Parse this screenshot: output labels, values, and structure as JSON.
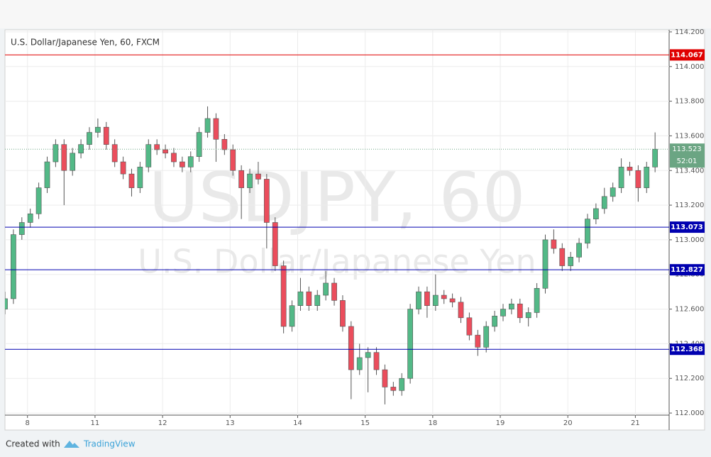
{
  "chart_data": {
    "type": "candlestick",
    "title": "U.S. Dollar/Japanese Yen, 60, FXCM",
    "watermark": {
      "symbol": "USDJPY, 60",
      "description": "U.S. Dollar/Japanese Yen"
    },
    "x": [
      0,
      3,
      6,
      9,
      12,
      15,
      18,
      21,
      24,
      27,
      30,
      33,
      36,
      39,
      42,
      45,
      48,
      51,
      54,
      57,
      60,
      63,
      66,
      69,
      72,
      75,
      78,
      81,
      84,
      87,
      90,
      93,
      96,
      99,
      102,
      105,
      108,
      111,
      114,
      117,
      120,
      123,
      126,
      129,
      132,
      135,
      138,
      141,
      144,
      147,
      150,
      153,
      156,
      159,
      162,
      165,
      168,
      171,
      174,
      177,
      180,
      183,
      186,
      189,
      192,
      195,
      198,
      201,
      204,
      207,
      210,
      213,
      216,
      219,
      222,
      225,
      228,
      231
    ],
    "open": [
      112.6,
      112.66,
      113.03,
      113.1,
      113.15,
      113.3,
      113.45,
      113.55,
      113.4,
      113.5,
      113.55,
      113.62,
      113.65,
      113.55,
      113.45,
      113.38,
      113.3,
      113.42,
      113.55,
      113.52,
      113.5,
      113.45,
      113.42,
      113.48,
      113.62,
      113.7,
      113.58,
      113.52,
      113.4,
      113.3,
      113.38,
      113.35,
      113.1,
      112.85,
      112.5,
      112.62,
      112.7,
      112.62,
      112.68,
      112.75,
      112.65,
      112.5,
      112.25,
      112.32,
      112.35,
      112.25,
      112.15,
      112.13,
      112.2,
      112.6,
      112.7,
      112.62,
      112.68,
      112.66,
      112.64,
      112.55,
      112.45,
      112.38,
      112.5,
      112.56,
      112.6,
      112.63,
      112.55,
      112.58,
      112.72,
      113.0,
      112.95,
      112.85,
      112.9,
      112.98,
      113.12,
      113.18,
      113.25,
      113.3,
      113.42,
      113.4,
      113.3,
      113.42
    ],
    "high": [
      112.7,
      113.06,
      113.13,
      113.18,
      113.33,
      113.48,
      113.58,
      113.58,
      113.53,
      113.58,
      113.65,
      113.7,
      113.68,
      113.58,
      113.48,
      113.41,
      113.45,
      113.58,
      113.58,
      113.55,
      113.53,
      113.48,
      113.51,
      113.65,
      113.77,
      113.73,
      113.61,
      113.55,
      113.43,
      113.41,
      113.45,
      113.38,
      113.13,
      112.88,
      112.65,
      112.78,
      112.73,
      112.71,
      112.82,
      112.78,
      112.68,
      112.53,
      112.4,
      112.38,
      112.38,
      112.28,
      112.18,
      112.23,
      112.63,
      112.73,
      112.73,
      112.8,
      112.71,
      112.69,
      112.67,
      112.58,
      112.48,
      112.53,
      112.59,
      112.63,
      112.66,
      112.66,
      112.61,
      112.75,
      113.03,
      113.06,
      112.98,
      112.93,
      113.01,
      113.15,
      113.21,
      113.3,
      113.33,
      113.47,
      113.45,
      113.43,
      113.45,
      113.62
    ],
    "low": [
      112.57,
      112.63,
      113.0,
      113.07,
      113.12,
      113.27,
      113.42,
      113.2,
      113.37,
      113.47,
      113.52,
      113.59,
      113.52,
      113.42,
      113.35,
      113.25,
      113.27,
      113.39,
      113.49,
      113.47,
      113.42,
      113.39,
      113.39,
      113.45,
      113.59,
      113.45,
      113.49,
      113.37,
      113.12,
      113.27,
      113.32,
      112.95,
      112.82,
      112.46,
      112.47,
      112.59,
      112.59,
      112.59,
      112.65,
      112.62,
      112.47,
      112.08,
      112.22,
      112.12,
      112.22,
      112.05,
      112.1,
      112.1,
      112.17,
      112.57,
      112.55,
      112.59,
      112.63,
      112.61,
      112.52,
      112.42,
      112.33,
      112.35,
      112.47,
      112.53,
      112.57,
      112.52,
      112.5,
      112.55,
      112.69,
      112.92,
      112.82,
      112.82,
      112.87,
      112.95,
      113.09,
      113.15,
      113.22,
      113.27,
      113.37,
      113.22,
      113.27,
      113.39
    ],
    "close": [
      112.66,
      113.03,
      113.1,
      113.15,
      113.3,
      113.45,
      113.55,
      113.4,
      113.5,
      113.55,
      113.62,
      113.65,
      113.55,
      113.45,
      113.38,
      113.3,
      113.42,
      113.55,
      113.52,
      113.5,
      113.45,
      113.42,
      113.48,
      113.62,
      113.7,
      113.58,
      113.52,
      113.4,
      113.3,
      113.38,
      113.35,
      113.1,
      112.85,
      112.5,
      112.62,
      112.7,
      112.62,
      112.68,
      112.75,
      112.65,
      112.5,
      112.25,
      112.32,
      112.35,
      112.25,
      112.15,
      112.13,
      112.2,
      112.6,
      112.7,
      112.62,
      112.68,
      112.66,
      112.64,
      112.55,
      112.45,
      112.38,
      112.5,
      112.56,
      112.6,
      112.63,
      112.55,
      112.58,
      112.72,
      113.0,
      112.95,
      112.85,
      112.9,
      112.98,
      113.12,
      113.18,
      113.25,
      113.3,
      113.42,
      113.4,
      113.3,
      113.42,
      113.523
    ],
    "up_color": "#53b987",
    "down_color": "#eb4d5c",
    "xlim": [
      0,
      236
    ],
    "xticks": [
      {
        "value": 8,
        "label": "8"
      },
      {
        "value": 32,
        "label": "11"
      },
      {
        "value": 56,
        "label": "12"
      },
      {
        "value": 80,
        "label": "13"
      },
      {
        "value": 104,
        "label": "14"
      },
      {
        "value": 128,
        "label": "15"
      },
      {
        "value": 152,
        "label": "18"
      },
      {
        "value": 176,
        "label": "19"
      },
      {
        "value": 200,
        "label": "20"
      },
      {
        "value": 224,
        "label": "21"
      }
    ],
    "ylim": [
      111.988,
      114.212
    ],
    "yticks": [
      {
        "value": 112.0,
        "label": "112.000"
      },
      {
        "value": 112.2,
        "label": "112.200"
      },
      {
        "value": 112.4,
        "label": "112.400"
      },
      {
        "value": 112.6,
        "label": "112.600"
      },
      {
        "value": 112.8,
        "label": "112.800"
      },
      {
        "value": 113.0,
        "label": "113.000"
      },
      {
        "value": 113.2,
        "label": "113.200"
      },
      {
        "value": 113.4,
        "label": "113.400"
      },
      {
        "value": 113.6,
        "label": "113.600"
      },
      {
        "value": 113.8,
        "label": "113.800"
      },
      {
        "value": 114.0,
        "label": "114.000"
      },
      {
        "value": 114.2,
        "label": "114.200"
      }
    ],
    "grid": true,
    "levels": [
      {
        "value": 114.067,
        "color": "#e00000"
      },
      {
        "value": 113.073,
        "color": "#0000b0"
      },
      {
        "value": 112.827,
        "color": "#0000b0"
      },
      {
        "value": 112.368,
        "color": "#0000b0"
      }
    ],
    "last_price": 113.523,
    "last_price_color": "#6ba583",
    "countdown": "52:01"
  },
  "footer": {
    "created_with": "Created with",
    "brand": "TradingView"
  }
}
